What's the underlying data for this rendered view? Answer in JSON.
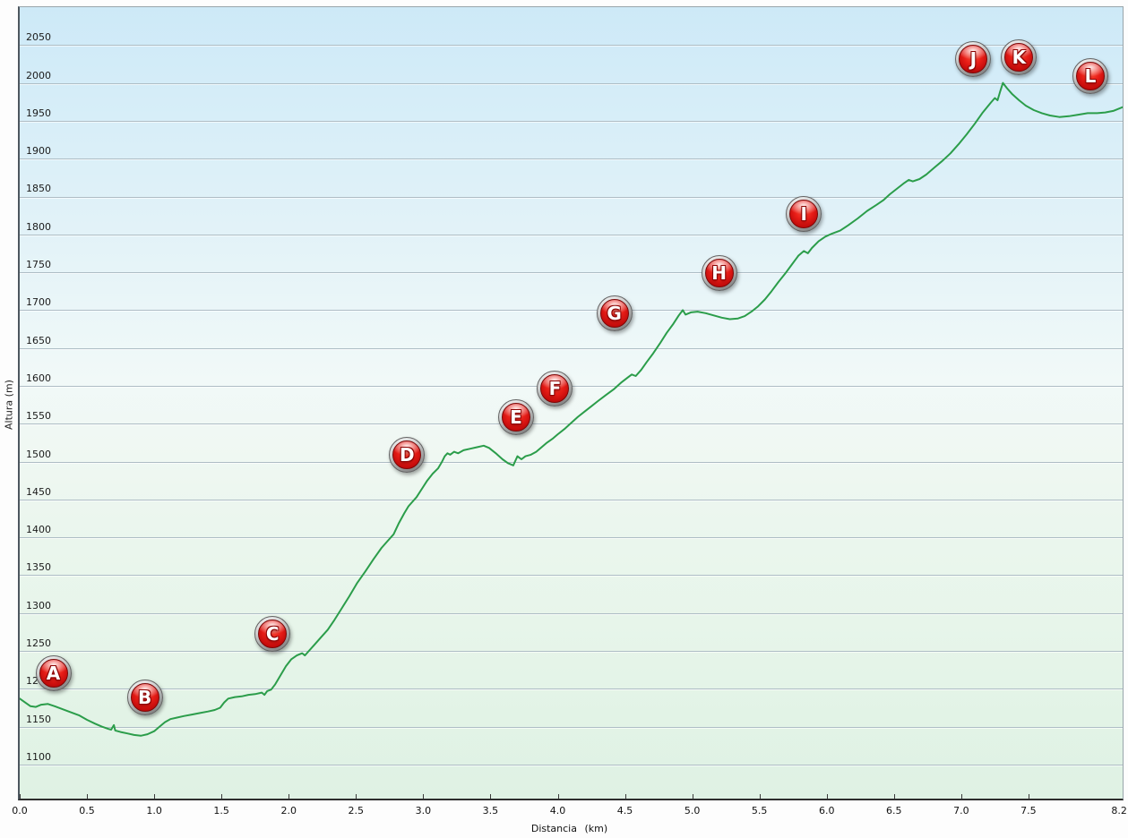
{
  "axes": {
    "x_title": "Distancia (km)",
    "y_title": "Altura (m)"
  },
  "colors": {
    "line": "#2b9d4a",
    "gridline": "#aebdc5",
    "marker_red": "#d81414",
    "marker_rim": "#a9a9a9",
    "plot_bg_top": "#cde9f7",
    "plot_bg_middle": "#f1f9f8",
    "plot_bg_bottom": "#dff2e4",
    "axis_text": "#111111"
  },
  "chart_data": {
    "type": "line",
    "title": "",
    "xlabel": "Distancia (km)",
    "ylabel": "Altura (m)",
    "xlim": [
      0,
      8.2
    ],
    "ylim": [
      1055,
      2100
    ],
    "grid": true,
    "legend": "none",
    "y_gridlines": [
      1100,
      1150,
      1200,
      1250,
      1300,
      1350,
      1400,
      1450,
      1500,
      1550,
      1600,
      1650,
      1700,
      1750,
      1800,
      1850,
      1900,
      1950,
      2000,
      2050
    ],
    "y_tick_labels": [
      "1100",
      "1150",
      "1200",
      "1250",
      "1300",
      "1350",
      "1400",
      "1450",
      "1500",
      "1550",
      "1600",
      "1650",
      "1700",
      "1750",
      "1800",
      "1850",
      "1900",
      "1950",
      "2000",
      "2050"
    ],
    "x_tick_values": [
      0,
      0.5,
      1,
      1.5,
      2,
      2.5,
      3,
      3.5,
      4,
      4.5,
      5,
      5.5,
      6,
      6.5,
      7,
      7.5,
      8.2
    ],
    "x_tick_labels": [
      "0.0",
      "0.5",
      "1.0",
      "1.5",
      "2.0",
      "2.5",
      "3.0",
      "3.5",
      "4.0",
      "4.5",
      "5.0",
      "5.5",
      "6.0",
      "6.5",
      "7.0",
      "7.5",
      "8.2"
    ],
    "series": [
      {
        "name": "elevation-profile",
        "color": "#2b9d4a",
        "points": [
          [
            0.0,
            1187
          ],
          [
            0.04,
            1182
          ],
          [
            0.08,
            1177
          ],
          [
            0.12,
            1176
          ],
          [
            0.16,
            1179
          ],
          [
            0.21,
            1180
          ],
          [
            0.26,
            1177
          ],
          [
            0.32,
            1173
          ],
          [
            0.38,
            1169
          ],
          [
            0.44,
            1165
          ],
          [
            0.5,
            1159
          ],
          [
            0.56,
            1154
          ],
          [
            0.61,
            1150
          ],
          [
            0.66,
            1147
          ],
          [
            0.68,
            1146
          ],
          [
            0.7,
            1152
          ],
          [
            0.71,
            1145
          ],
          [
            0.75,
            1143
          ],
          [
            0.8,
            1141
          ],
          [
            0.85,
            1139
          ],
          [
            0.9,
            1138
          ],
          [
            0.95,
            1140
          ],
          [
            1.0,
            1144
          ],
          [
            1.04,
            1150
          ],
          [
            1.08,
            1156
          ],
          [
            1.12,
            1160
          ],
          [
            1.17,
            1162
          ],
          [
            1.22,
            1164
          ],
          [
            1.28,
            1166
          ],
          [
            1.34,
            1168
          ],
          [
            1.4,
            1170
          ],
          [
            1.45,
            1172
          ],
          [
            1.49,
            1175
          ],
          [
            1.52,
            1182
          ],
          [
            1.55,
            1187
          ],
          [
            1.6,
            1189
          ],
          [
            1.65,
            1190
          ],
          [
            1.7,
            1192
          ],
          [
            1.75,
            1193
          ],
          [
            1.8,
            1195
          ],
          [
            1.82,
            1192
          ],
          [
            1.84,
            1197
          ],
          [
            1.87,
            1199
          ],
          [
            1.9,
            1206
          ],
          [
            1.94,
            1218
          ],
          [
            1.98,
            1230
          ],
          [
            2.02,
            1239
          ],
          [
            2.06,
            1244
          ],
          [
            2.1,
            1247
          ],
          [
            2.12,
            1244
          ],
          [
            2.15,
            1250
          ],
          [
            2.19,
            1258
          ],
          [
            2.24,
            1268
          ],
          [
            2.29,
            1278
          ],
          [
            2.34,
            1291
          ],
          [
            2.39,
            1305
          ],
          [
            2.45,
            1322
          ],
          [
            2.51,
            1340
          ],
          [
            2.57,
            1355
          ],
          [
            2.63,
            1371
          ],
          [
            2.69,
            1386
          ],
          [
            2.74,
            1396
          ],
          [
            2.78,
            1404
          ],
          [
            2.82,
            1419
          ],
          [
            2.86,
            1432
          ],
          [
            2.89,
            1441
          ],
          [
            2.92,
            1447
          ],
          [
            2.95,
            1453
          ],
          [
            2.99,
            1464
          ],
          [
            3.03,
            1475
          ],
          [
            3.07,
            1484
          ],
          [
            3.11,
            1491
          ],
          [
            3.14,
            1500
          ],
          [
            3.16,
            1507
          ],
          [
            3.18,
            1511
          ],
          [
            3.2,
            1509
          ],
          [
            3.23,
            1513
          ],
          [
            3.26,
            1511
          ],
          [
            3.3,
            1515
          ],
          [
            3.35,
            1517
          ],
          [
            3.4,
            1519
          ],
          [
            3.45,
            1521
          ],
          [
            3.49,
            1518
          ],
          [
            3.54,
            1511
          ],
          [
            3.59,
            1503
          ],
          [
            3.63,
            1498
          ],
          [
            3.67,
            1495
          ],
          [
            3.7,
            1507
          ],
          [
            3.73,
            1503
          ],
          [
            3.76,
            1507
          ],
          [
            3.8,
            1509
          ],
          [
            3.84,
            1513
          ],
          [
            3.88,
            1519
          ],
          [
            3.92,
            1525
          ],
          [
            3.96,
            1530
          ],
          [
            4.0,
            1536
          ],
          [
            4.05,
            1543
          ],
          [
            4.1,
            1551
          ],
          [
            4.15,
            1559
          ],
          [
            4.2,
            1566
          ],
          [
            4.25,
            1573
          ],
          [
            4.3,
            1580
          ],
          [
            4.36,
            1588
          ],
          [
            4.42,
            1596
          ],
          [
            4.47,
            1604
          ],
          [
            4.52,
            1611
          ],
          [
            4.55,
            1615
          ],
          [
            4.58,
            1613
          ],
          [
            4.62,
            1621
          ],
          [
            4.66,
            1631
          ],
          [
            4.71,
            1643
          ],
          [
            4.76,
            1656
          ],
          [
            4.81,
            1670
          ],
          [
            4.86,
            1682
          ],
          [
            4.9,
            1693
          ],
          [
            4.93,
            1700
          ],
          [
            4.95,
            1694
          ],
          [
            4.99,
            1697
          ],
          [
            5.04,
            1698
          ],
          [
            5.1,
            1696
          ],
          [
            5.16,
            1693
          ],
          [
            5.22,
            1690
          ],
          [
            5.28,
            1688
          ],
          [
            5.34,
            1689
          ],
          [
            5.39,
            1692
          ],
          [
            5.44,
            1698
          ],
          [
            5.49,
            1705
          ],
          [
            5.54,
            1714
          ],
          [
            5.59,
            1725
          ],
          [
            5.64,
            1737
          ],
          [
            5.69,
            1748
          ],
          [
            5.74,
            1760
          ],
          [
            5.79,
            1772
          ],
          [
            5.83,
            1778
          ],
          [
            5.86,
            1775
          ],
          [
            5.89,
            1782
          ],
          [
            5.94,
            1791
          ],
          [
            5.99,
            1797
          ],
          [
            6.04,
            1801
          ],
          [
            6.1,
            1805
          ],
          [
            6.16,
            1812
          ],
          [
            6.23,
            1821
          ],
          [
            6.3,
            1831
          ],
          [
            6.37,
            1839
          ],
          [
            6.42,
            1845
          ],
          [
            6.47,
            1853
          ],
          [
            6.52,
            1860
          ],
          [
            6.57,
            1867
          ],
          [
            6.61,
            1872
          ],
          [
            6.64,
            1870
          ],
          [
            6.69,
            1873
          ],
          [
            6.74,
            1879
          ],
          [
            6.8,
            1888
          ],
          [
            6.86,
            1897
          ],
          [
            6.92,
            1907
          ],
          [
            6.98,
            1919
          ],
          [
            7.04,
            1932
          ],
          [
            7.1,
            1946
          ],
          [
            7.16,
            1961
          ],
          [
            7.22,
            1974
          ],
          [
            7.25,
            1980
          ],
          [
            7.27,
            1977
          ],
          [
            7.29,
            1989
          ],
          [
            7.31,
            2000
          ],
          [
            7.34,
            1993
          ],
          [
            7.38,
            1985
          ],
          [
            7.43,
            1977
          ],
          [
            7.48,
            1970
          ],
          [
            7.54,
            1964
          ],
          [
            7.6,
            1960
          ],
          [
            7.66,
            1957
          ],
          [
            7.73,
            1955
          ],
          [
            7.8,
            1956
          ],
          [
            7.87,
            1958
          ],
          [
            7.94,
            1960
          ],
          [
            8.01,
            1960
          ],
          [
            8.07,
            1961
          ],
          [
            8.13,
            1963
          ],
          [
            8.2,
            1968
          ]
        ]
      }
    ],
    "waypoints": [
      {
        "label": "A",
        "km": 0.25,
        "alt": 1221
      },
      {
        "label": "B",
        "km": 0.93,
        "alt": 1188
      },
      {
        "label": "C",
        "km": 1.88,
        "alt": 1273
      },
      {
        "label": "D",
        "km": 2.88,
        "alt": 1509
      },
      {
        "label": "E",
        "km": 3.69,
        "alt": 1559
      },
      {
        "label": "F",
        "km": 3.98,
        "alt": 1596
      },
      {
        "label": "G",
        "km": 4.42,
        "alt": 1696
      },
      {
        "label": "H",
        "km": 5.2,
        "alt": 1749
      },
      {
        "label": "I",
        "km": 5.83,
        "alt": 1827
      },
      {
        "label": "J",
        "km": 7.09,
        "alt": 2031
      },
      {
        "label": "K",
        "km": 7.43,
        "alt": 2034
      },
      {
        "label": "L",
        "km": 7.96,
        "alt": 2009
      }
    ]
  }
}
